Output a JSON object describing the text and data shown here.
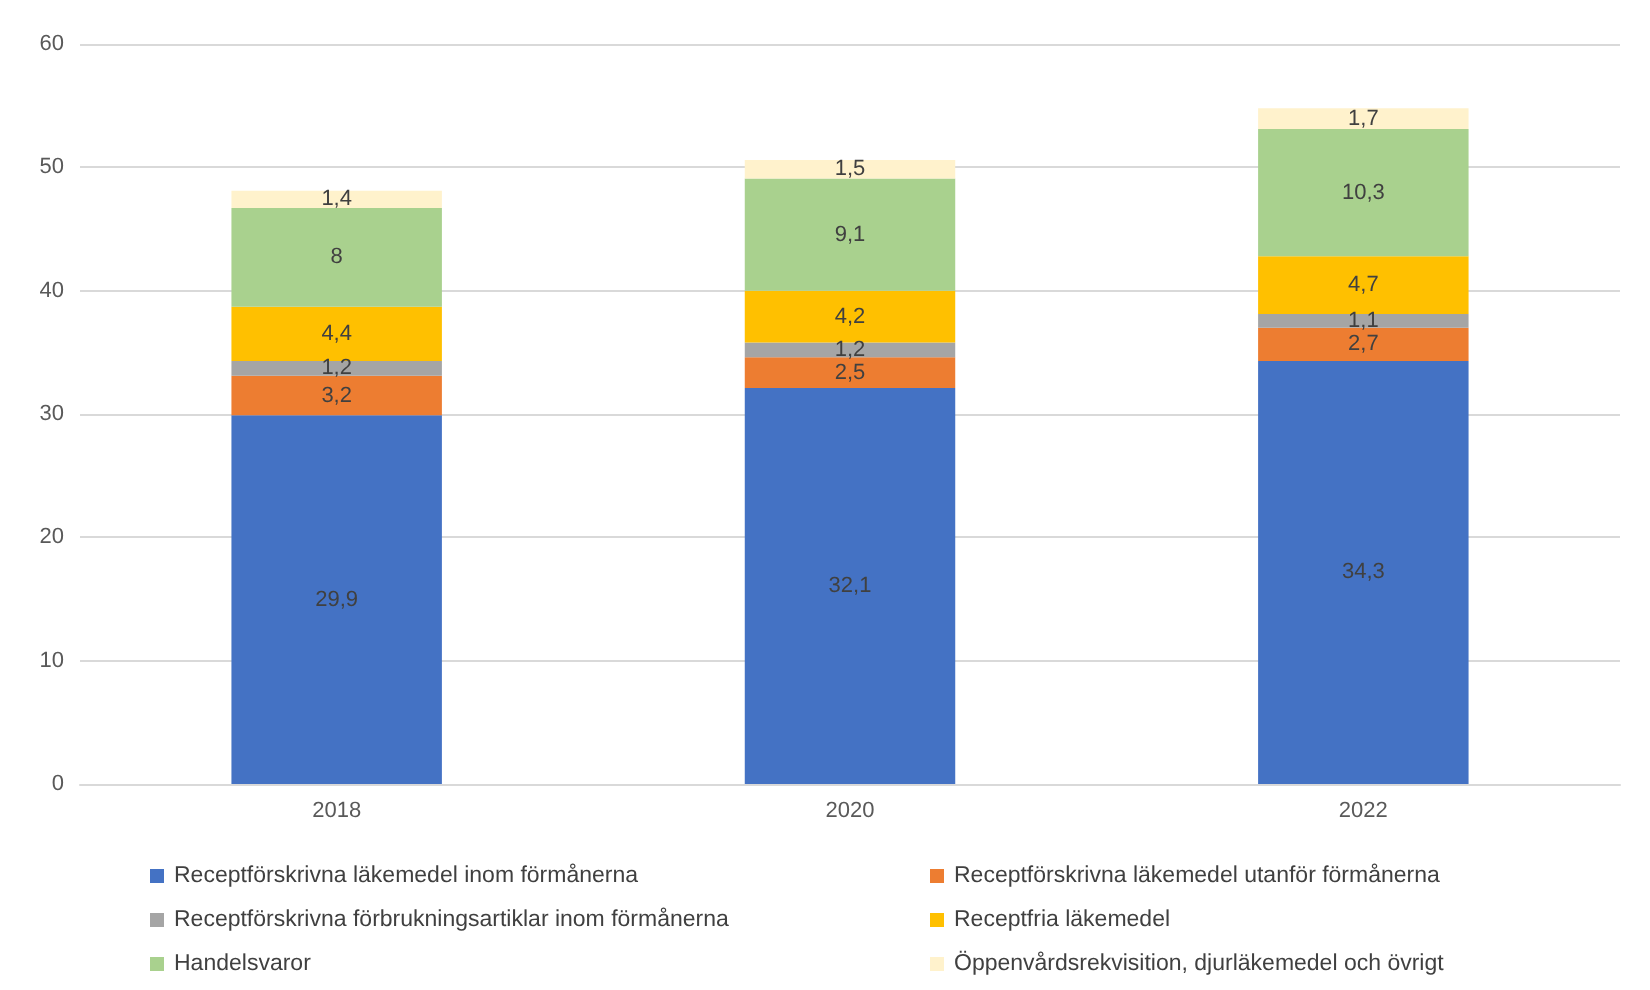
{
  "chart_data": {
    "type": "bar",
    "stacked": true,
    "categories": [
      "2018",
      "2020",
      "2022"
    ],
    "ylim": [
      0,
      60
    ],
    "yticks": [
      0,
      10,
      20,
      30,
      40,
      50,
      60
    ],
    "grid": "y",
    "legend": "bottom",
    "series": [
      {
        "name": "Receptförskrivna läkemedel inom förmånerna",
        "color": "#4472c4",
        "values": [
          29.9,
          32.1,
          34.3
        ],
        "value_labels": [
          "29,9",
          "32,1",
          "34,3"
        ]
      },
      {
        "name": "Receptförskrivna läkemedel utanför förmånerna",
        "color": "#ed7d31",
        "values": [
          3.2,
          2.5,
          2.7
        ],
        "value_labels": [
          "3,2",
          "2,5",
          "2,7"
        ]
      },
      {
        "name": "Receptförskrivna förbrukningsartiklar inom förmånerna",
        "color": "#a5a5a5",
        "values": [
          1.2,
          1.2,
          1.1
        ],
        "value_labels": [
          "1,2",
          "1,2",
          "1,1"
        ]
      },
      {
        "name": "Receptfria läkemedel",
        "color": "#ffc000",
        "values": [
          4.4,
          4.2,
          4.7
        ],
        "value_labels": [
          "4,4",
          "4,2",
          "4,7"
        ]
      },
      {
        "name": "Handelsvaror",
        "color": "#a9d18e",
        "values": [
          8,
          9.1,
          10.3
        ],
        "value_labels": [
          "8",
          "9,1",
          "10,3"
        ]
      },
      {
        "name": "Öppenvårdsrekvisition, djurläkemedel och övrigt",
        "color": "#fff2cc",
        "values": [
          1.4,
          1.5,
          1.7
        ],
        "value_labels": [
          "1,4",
          "1,5",
          "1,7"
        ]
      }
    ]
  }
}
